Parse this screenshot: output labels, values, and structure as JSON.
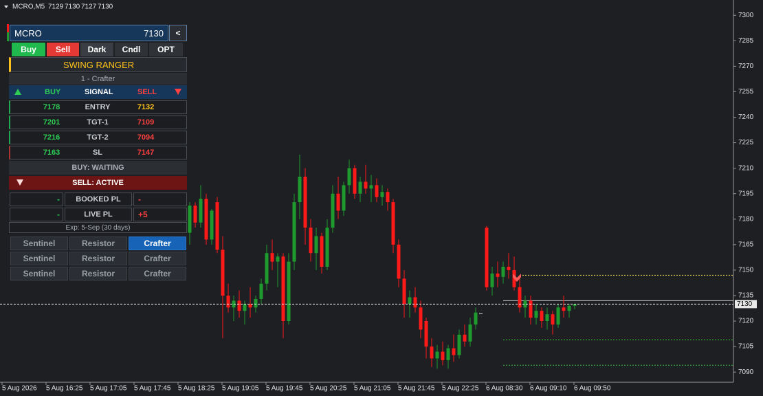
{
  "header": {
    "symbol": "MCRO,M5",
    "ohlc": [
      7129,
      7130,
      7127,
      7130
    ]
  },
  "chart_data": {
    "type": "candlestick",
    "ylim": [
      7084,
      7309
    ],
    "yticks": [
      7300,
      7285,
      7270,
      7255,
      7240,
      7225,
      7210,
      7195,
      7180,
      7165,
      7150,
      7135,
      7120,
      7105,
      7090
    ],
    "x_labels": [
      "5 Aug 2026",
      "5 Aug 16:25",
      "5 Aug 17:05",
      "5 Aug 17:45",
      "5 Aug 18:25",
      "5 Aug 19:05",
      "5 Aug 19:45",
      "5 Aug 20:25",
      "5 Aug 21:05",
      "5 Aug 21:45",
      "5 Aug 22:25",
      "6 Aug 08:30",
      "6 Aug 09:10",
      "6 Aug 09:50"
    ],
    "up_color": "#1f9a2e",
    "down_color": "#ff1a1a",
    "open": [
      7172,
      7188,
      7178,
      7192,
      7168,
      7190,
      7162,
      7135,
      7128,
      7132,
      7126,
      7130,
      7128,
      7133,
      7142,
      7160,
      7155,
      7158,
      7120,
      7155,
      7190,
      7205,
      7175,
      7160,
      7170,
      7152,
      7175,
      7195,
      7185,
      7200,
      7210,
      7195,
      7202,
      7198,
      7200,
      7193,
      7196,
      7190,
      7165,
      7145,
      7130,
      7134,
      7128,
      7120,
      7105,
      7098,
      7102,
      7097,
      7104,
      7100,
      7112,
      7108,
      7118,
      null,
      7175,
      7140,
      7148,
      7146,
      7152,
      7150,
      7140,
      7128,
      7132,
      7122,
      7126,
      7120,
      7124,
      7118,
      7128,
      7126,
      7129
    ],
    "high": [
      7190,
      7190,
      7200,
      7195,
      7186,
      7193,
      7170,
      7142,
      7135,
      7138,
      7132,
      7140,
      7135,
      7145,
      7165,
      7168,
      7160,
      7160,
      7160,
      7195,
      7218,
      7210,
      7180,
      7175,
      7172,
      7180,
      7200,
      7205,
      7202,
      7215,
      7212,
      7205,
      7212,
      7206,
      7204,
      7200,
      7198,
      7192,
      7168,
      7150,
      7138,
      7140,
      7132,
      7122,
      7110,
      7106,
      7108,
      7106,
      7112,
      7115,
      7118,
      7122,
      7128,
      null,
      7176,
      7152,
      7155,
      7155,
      7160,
      7158,
      7145,
      7135,
      7135,
      7130,
      7128,
      7128,
      7126,
      7130,
      7135,
      7130,
      7130
    ],
    "low": [
      7165,
      7175,
      7175,
      7165,
      7165,
      7160,
      7110,
      7125,
      7120,
      7122,
      7118,
      7122,
      7125,
      7130,
      7138,
      7150,
      7140,
      7110,
      7118,
      7150,
      7180,
      7165,
      7155,
      7150,
      7148,
      7150,
      7172,
      7180,
      7182,
      7195,
      7192,
      7190,
      7195,
      7190,
      7190,
      7188,
      7185,
      7160,
      7140,
      7122,
      7122,
      7125,
      7110,
      7098,
      7093,
      7092,
      7094,
      7092,
      7096,
      7098,
      7105,
      7105,
      7115,
      null,
      7138,
      7135,
      7140,
      7142,
      7145,
      7138,
      7125,
      7122,
      7118,
      7118,
      7116,
      7115,
      7112,
      7116,
      7122,
      7122,
      7127
    ],
    "close": [
      7188,
      7178,
      7192,
      7168,
      7185,
      7162,
      7135,
      7128,
      7132,
      7126,
      7130,
      7128,
      7133,
      7142,
      7160,
      7155,
      7158,
      7120,
      7155,
      7190,
      7205,
      7175,
      7160,
      7170,
      7152,
      7175,
      7195,
      7185,
      7200,
      7210,
      7195,
      7202,
      7198,
      7200,
      7193,
      7196,
      7190,
      7165,
      7145,
      7130,
      7134,
      7128,
      7115,
      7105,
      7098,
      7102,
      7097,
      7104,
      7100,
      7112,
      7108,
      7118,
      7125,
      null,
      7140,
      7148,
      7146,
      7152,
      7150,
      7140,
      7128,
      7132,
      7122,
      7126,
      7120,
      7124,
      7118,
      7128,
      7126,
      7129,
      7130
    ],
    "current_price": 7130,
    "levels": [
      {
        "value": 7147,
        "color": "#e8d44d",
        "style": "dotted"
      },
      {
        "value": 7132,
        "color": "#d0d0d0",
        "style": "solid"
      },
      {
        "value": 7109,
        "color": "#3fbf3f",
        "style": "dotted"
      },
      {
        "value": 7094,
        "color": "#3fbf3f",
        "style": "dotted"
      }
    ]
  },
  "panel": {
    "symbol": "MCRO",
    "price": 7130,
    "collapse": "<",
    "tabs": [
      "Buy",
      "Sell",
      "Dark",
      "Cndl",
      "OPT"
    ],
    "title": "SWING RANGER",
    "subtitle": "1 - Crafter",
    "columns": [
      "BUY",
      "SIGNAL",
      "SELL"
    ],
    "rows": [
      {
        "buy": 7178,
        "label": "ENTRY",
        "sell": 7132
      },
      {
        "buy": 7201,
        "label": "TGT-1",
        "sell": 7109
      },
      {
        "buy": 7216,
        "label": "TGT-2",
        "sell": 7094
      },
      {
        "buy": 7163,
        "label": "SL",
        "sell": 7147
      }
    ],
    "buy_status": "BUY: WAITING",
    "sell_status": "SELL: ACTIVE",
    "pl": [
      {
        "buy": "-",
        "label": "BOOKED PL",
        "sell": "-"
      },
      {
        "buy": "-",
        "label": "LIVE PL",
        "sell": "+5"
      }
    ],
    "expiry": "Exp: 5-Sep (30 days)",
    "buttons": [
      [
        "Sentinel",
        "Resistor",
        "Crafter"
      ],
      [
        "Sentinel",
        "Resistor",
        "Crafter"
      ],
      [
        "Sentinel",
        "Resistor",
        "Crafter"
      ]
    ]
  }
}
